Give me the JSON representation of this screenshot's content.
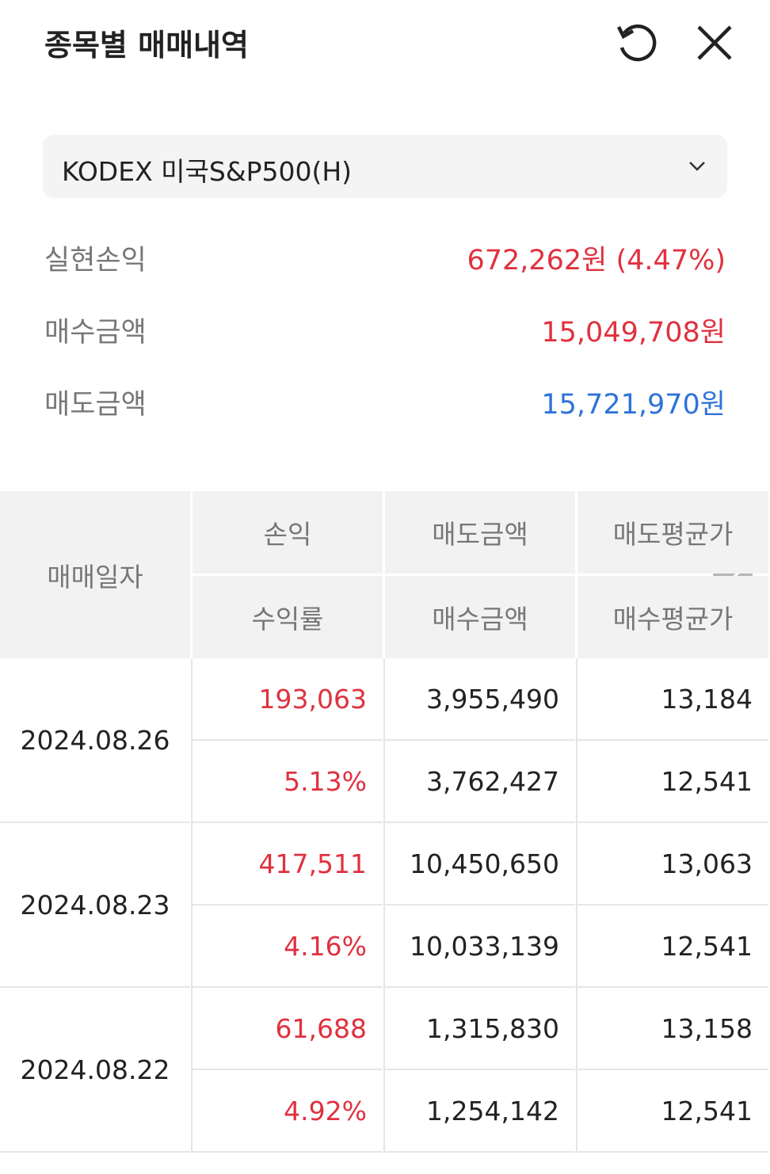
{
  "header": {
    "title": "종목별 매매내역"
  },
  "selector": {
    "value": "KODEX 미국S&P500(H)"
  },
  "summary": [
    {
      "label": "실현손익",
      "value": "672,262원 (4.47%)"
    },
    {
      "label": "매수금액",
      "value": "15,049,708원"
    },
    {
      "label": "매도금액",
      "value": "15,721,970원"
    }
  ],
  "table": {
    "date_header": "매매일자",
    "column_headers": [
      [
        "손익",
        "수익률"
      ],
      [
        "매도금액",
        "매수금액"
      ],
      [
        "매도평균가",
        "매수평균가"
      ]
    ],
    "rows": [
      {
        "date": "2024.08.26",
        "cells": [
          [
            "193,063",
            "5.13%"
          ],
          [
            "3,955,490",
            "3,762,427"
          ],
          [
            "13,184",
            "12,541"
          ]
        ]
      },
      {
        "date": "2024.08.23",
        "cells": [
          [
            "417,511",
            "4.16%"
          ],
          [
            "10,450,650",
            "10,033,139"
          ],
          [
            "13,063",
            "12,541"
          ]
        ]
      },
      {
        "date": "2024.08.22",
        "cells": [
          [
            "61,688",
            "4.92%"
          ],
          [
            "1,315,830",
            "1,254,142"
          ],
          [
            "13,158",
            "12,541"
          ]
        ]
      }
    ]
  }
}
